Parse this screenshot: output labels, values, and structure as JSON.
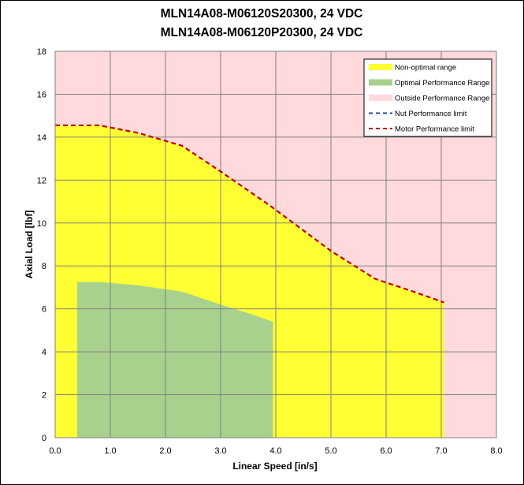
{
  "chart_data": {
    "type": "area",
    "title_lines": [
      "MLN14A08-M06120S20300, 24 VDC",
      "MLN14A08-M06120P20300, 24 VDC"
    ],
    "xlabel": "Linear Speed [in/s]",
    "ylabel": "Axial Load [lbf]",
    "xlim": [
      0,
      8
    ],
    "ylim": [
      0,
      18
    ],
    "x_ticks": [
      "0.0",
      "1.0",
      "2.0",
      "3.0",
      "4.0",
      "5.0",
      "6.0",
      "7.0",
      "8.0"
    ],
    "y_ticks": [
      "0",
      "2",
      "4",
      "6",
      "8",
      "10",
      "12",
      "14",
      "16",
      "18"
    ],
    "grid": true,
    "legend_position": "top-right",
    "background_region": {
      "name": "Outside Performance Range",
      "color": "#ffd9dc"
    },
    "series": [
      {
        "name": "Non-optimal range",
        "kind": "area",
        "color": "#ffff33",
        "x": [
          0.0,
          0.8,
          1.5,
          2.3,
          3.0,
          3.9,
          5.0,
          5.8,
          6.5,
          7.05
        ],
        "y": [
          14.55,
          14.55,
          14.2,
          13.6,
          12.4,
          10.8,
          8.7,
          7.4,
          6.8,
          6.3
        ]
      },
      {
        "name": "Optimal Performance Range",
        "kind": "area",
        "color": "#a9d18e",
        "x": [
          0.4,
          0.8,
          1.5,
          2.3,
          3.0,
          3.5,
          3.95
        ],
        "y": [
          7.25,
          7.25,
          7.1,
          6.8,
          6.2,
          5.8,
          5.4
        ]
      },
      {
        "name": "Nut Performance limit",
        "kind": "dashed-line",
        "color": "#1f4e9c",
        "x": [],
        "y": []
      },
      {
        "name": "Motor Performance limit",
        "kind": "dashed-line",
        "color": "#c00000",
        "x": [
          0.0,
          0.8,
          1.5,
          2.3,
          3.0,
          3.9,
          5.0,
          5.8,
          6.5,
          7.05
        ],
        "y": [
          14.55,
          14.55,
          14.2,
          13.6,
          12.4,
          10.8,
          8.7,
          7.4,
          6.8,
          6.3
        ]
      }
    ],
    "legend_entries": [
      "Non-optimal range",
      "Optimal Performance Range",
      "Outside Performance Range",
      "Nut Performance limit",
      "Motor Performance limit"
    ]
  }
}
